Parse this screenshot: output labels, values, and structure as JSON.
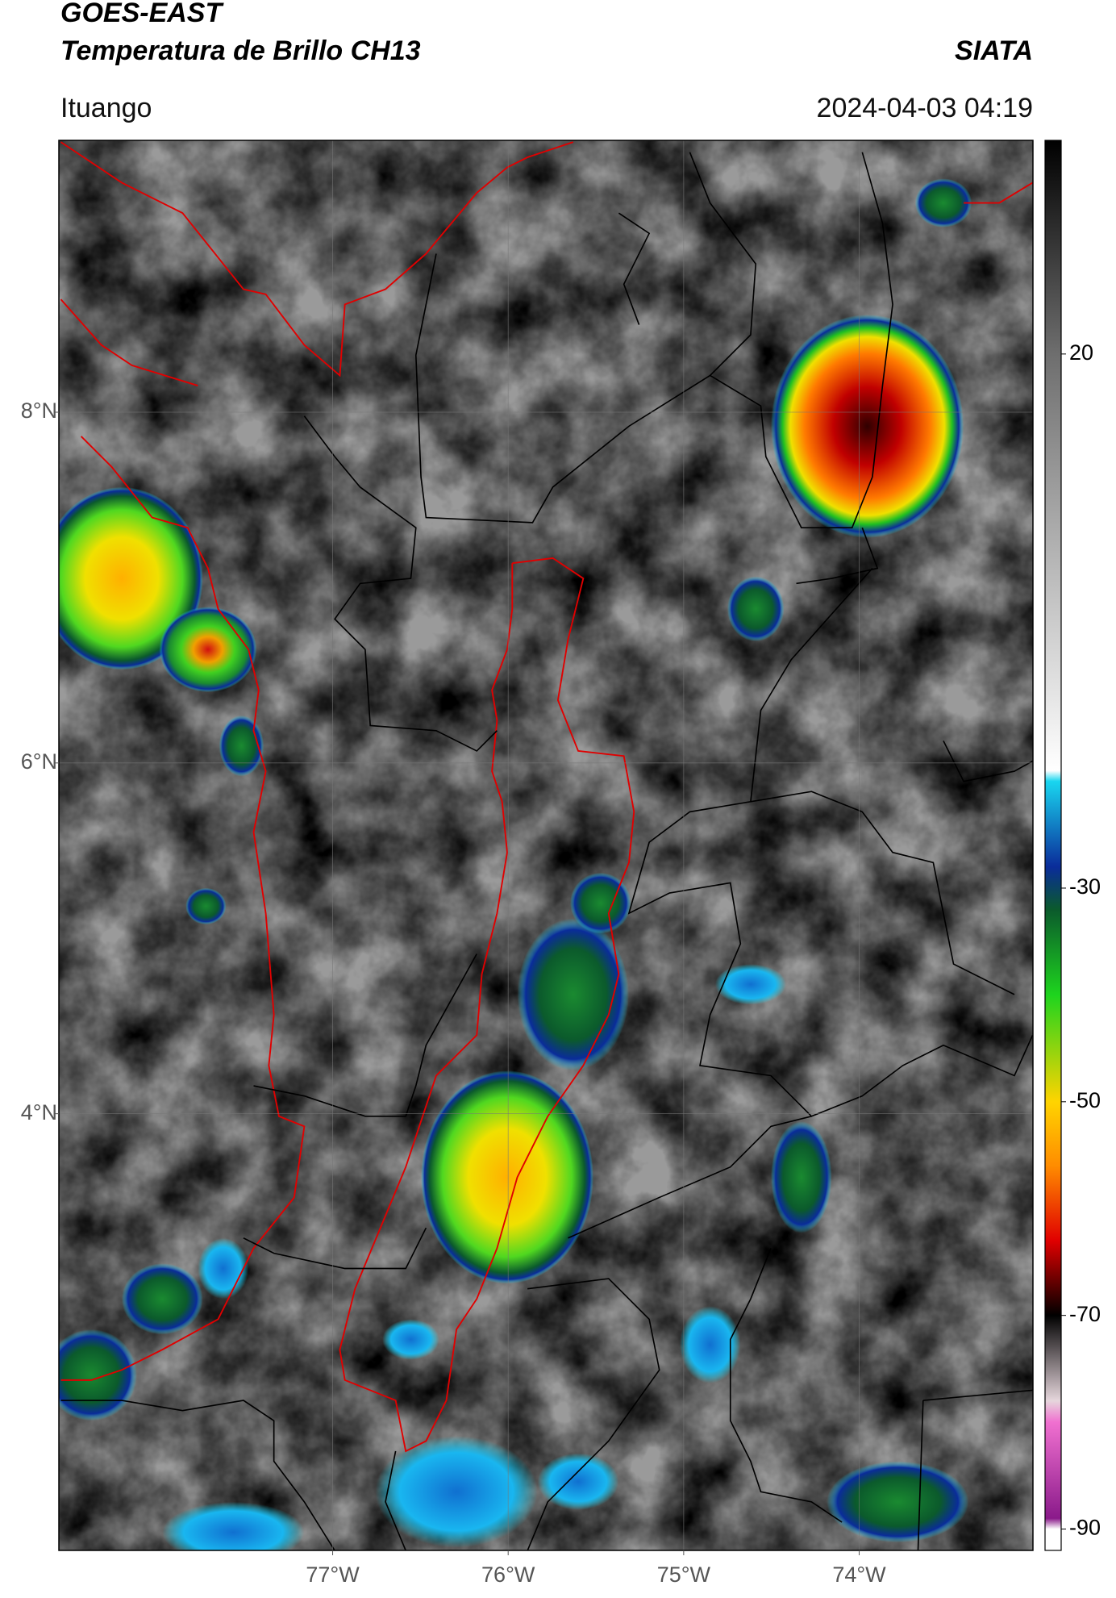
{
  "map": {
    "title_line1": "GOES-EAST",
    "title_line2": "Temperatura de Brillo CH13",
    "source": "SIATA",
    "location": "Ituango",
    "datetime": "2024-04-03 04:19",
    "lat_range": [
      1.51,
      9.55
    ],
    "lon_range": [
      -78.56,
      -73.01
    ],
    "lat_ticks": [
      {
        "value": 8,
        "label": "8°N"
      },
      {
        "value": 6,
        "label": "6°N"
      },
      {
        "value": 4,
        "label": "4°N"
      }
    ],
    "lon_ticks": [
      {
        "value": -77,
        "label": "77°W"
      },
      {
        "value": -76,
        "label": "76°W"
      },
      {
        "value": -75,
        "label": "75°W"
      },
      {
        "value": -74,
        "label": "74°W"
      }
    ],
    "grid": true,
    "colorbar": {
      "range": [
        -92,
        40
      ],
      "ticks": [
        20,
        -30,
        -50,
        -70,
        -90
      ],
      "stops": [
        {
          "value": 40,
          "color": "#000000"
        },
        {
          "value": 20,
          "color": "#6e6e6e"
        },
        {
          "value": -19,
          "color": "#ffffff"
        },
        {
          "value": -20,
          "color": "#19d6f0"
        },
        {
          "value": -28,
          "color": "#0a2c9a"
        },
        {
          "value": -32,
          "color": "#0b5a2c"
        },
        {
          "value": -40,
          "color": "#1ed41e"
        },
        {
          "value": -50,
          "color": "#ffd400"
        },
        {
          "value": -56,
          "color": "#ff8c00"
        },
        {
          "value": -63,
          "color": "#e00000"
        },
        {
          "value": -68,
          "color": "#400000"
        },
        {
          "value": -70,
          "color": "#000000"
        },
        {
          "value": -78,
          "color": "#e6d6dc"
        },
        {
          "value": -80,
          "color": "#f070d0"
        },
        {
          "value": -89,
          "color": "#8a1a8a"
        },
        {
          "value": -90,
          "color": "#ffffff"
        }
      ]
    }
  }
}
